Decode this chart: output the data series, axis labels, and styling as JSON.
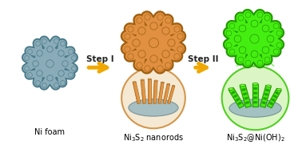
{
  "bg_color": "#ffffff",
  "arrow_color": "#f0a800",
  "arrow_label1": "Step I",
  "arrow_label2": "Step II",
  "arrow_fontsize": 7.5,
  "arrow_fontweight": "bold",
  "label1": "Ni foam",
  "label2": "Ni$_3$S$_2$ nanorods",
  "label3": "Ni$_3$S$_2$@Ni(OH)$_2$",
  "label_fontsize": 7,
  "foam_color": "#8aacb8",
  "foam_dark": "#4a7a8a",
  "foam_highlight": "#b0ccd8",
  "nirod_color": "#e09040",
  "nirod_dark": "#a06010",
  "nirod_highlight": "#f0b870",
  "cs_color": "#44ee11",
  "cs_dark": "#229900",
  "cs_highlight": "#88ff44",
  "zoom1_bg": "#f5e8d0",
  "zoom1_edge": "#d09040",
  "zoom2_bg": "#d8f5c0",
  "zoom2_edge": "#44cc11",
  "base_color": "#9ab8c0",
  "base_dark": "#6a8890"
}
